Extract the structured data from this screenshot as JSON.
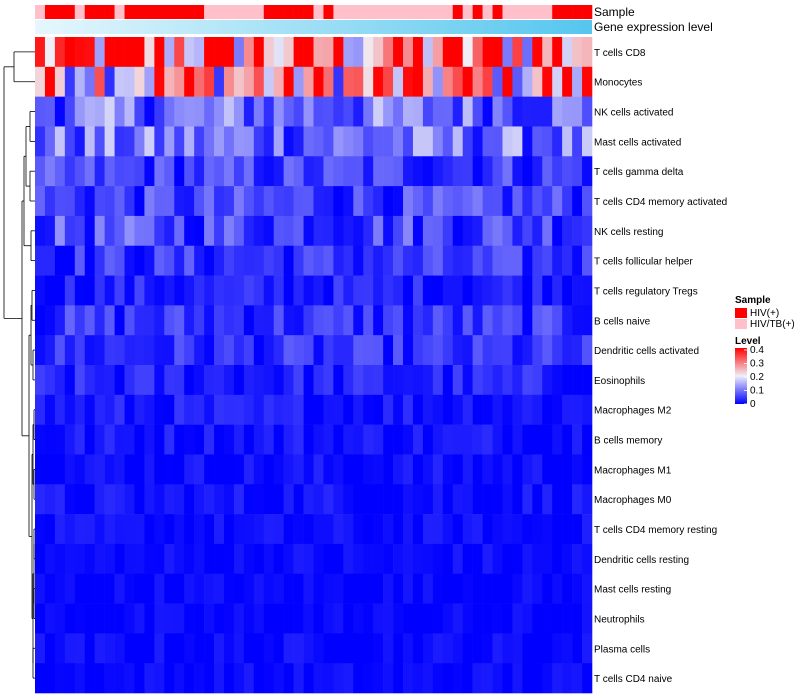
{
  "chart_data": {
    "type": "heatmap",
    "title": "",
    "annotation_tracks": [
      {
        "name": "Sample",
        "values": [
          "HIV/TB(+)",
          "HIV(+)",
          "HIV(+)",
          "HIV(+)",
          "HIV/TB(+)",
          "HIV(+)",
          "HIV(+)",
          "HIV(+)",
          "HIV/TB(+)",
          "HIV(+)",
          "HIV(+)",
          "HIV(+)",
          "HIV(+)",
          "HIV(+)",
          "HIV(+)",
          "HIV(+)",
          "HIV(+)",
          "HIV/TB(+)",
          "HIV/TB(+)",
          "HIV/TB(+)",
          "HIV/TB(+)",
          "HIV/TB(+)",
          "HIV/TB(+)",
          "HIV(+)",
          "HIV(+)",
          "HIV(+)",
          "HIV(+)",
          "HIV(+)",
          "HIV/TB(+)",
          "HIV(+)",
          "HIV/TB(+)",
          "HIV/TB(+)",
          "HIV/TB(+)",
          "HIV/TB(+)",
          "HIV/TB(+)",
          "HIV/TB(+)",
          "HIV/TB(+)",
          "HIV/TB(+)",
          "HIV/TB(+)",
          "HIV/TB(+)",
          "HIV/TB(+)",
          "HIV/TB(+)",
          "HIV(+)",
          "HIV/TB(+)",
          "HIV(+)",
          "HIV/TB(+)",
          "HIV(+)",
          "HIV/TB(+)",
          "HIV/TB(+)",
          "HIV/TB(+)",
          "HIV/TB(+)",
          "HIV/TB(+)",
          "HIV(+)",
          "HIV(+)",
          "HIV(+)",
          "HIV(+)"
        ]
      },
      {
        "name": "Gene expression level",
        "scale": "continuous, increasing left to right"
      }
    ],
    "rows": [
      "T cells CD8",
      "Monocytes",
      "NK cells activated",
      "Mast cells activated",
      "T cells gamma delta",
      "T cells CD4 memory activated",
      "NK cells resting",
      "T cells follicular helper",
      "T cells regulatory  Tregs",
      "B cells naive",
      "Dendritic cells activated",
      "Eosinophils",
      "Macrophages M2",
      "B cells memory",
      "Macrophages M1",
      "Macrophages M0",
      "T cells CD4 memory resting",
      "Dendritic cells resting",
      "Mast cells resting",
      "Neutrophils",
      "Plasma cells",
      "T cells CD4 naive"
    ],
    "n_columns": 56,
    "row_mean_level": [
      0.3,
      0.26,
      0.09,
      0.09,
      0.05,
      0.05,
      0.06,
      0.04,
      0.025,
      0.04,
      0.035,
      0.025,
      0.018,
      0.015,
      0.01,
      0.012,
      0.007,
      0.006,
      0.004,
      0.003,
      0.006,
      0.005
    ],
    "color_scale": {
      "min": 0,
      "max": 0.4,
      "low": "#0000ff",
      "mid": "#f0f0f8",
      "high": "#ff0000",
      "mid_value": 0.2
    },
    "dendrogram": "row clustering, left side"
  },
  "legend": {
    "sample_title": "Sample",
    "sample_items": [
      {
        "label": "HIV(+)",
        "color": "#ff0000"
      },
      {
        "label": "HIV/TB(+)",
        "color": "#ffc0cb"
      }
    ],
    "level_title": "Level",
    "level_ticks": [
      "0.4",
      "0.3",
      "0.2",
      "0.1",
      "0"
    ]
  }
}
